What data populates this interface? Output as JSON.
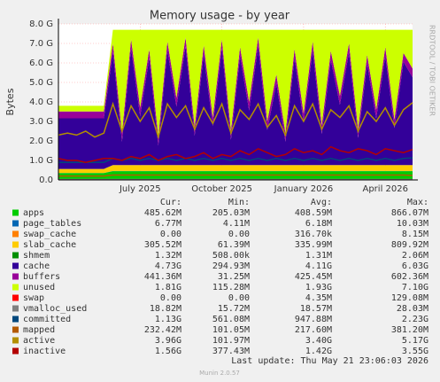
{
  "chart_data": {
    "type": "area",
    "title": "Memory usage - by year",
    "y_label": "Bytes",
    "side_text": "RRDTOOL / TOBI OETIKER",
    "footer": "Last update: Thu May 21 23:06:03 2026",
    "version": "Munin 2.0.57",
    "grid": true,
    "categories": [
      null,
      null,
      null,
      null,
      null,
      null,
      null,
      null,
      null,
      "July 2025",
      null,
      null,
      null,
      null,
      null,
      null,
      null,
      null,
      "October 2025",
      null,
      null,
      null,
      null,
      null,
      null,
      null,
      null,
      "January 2026",
      null,
      null,
      null,
      null,
      null,
      null,
      null,
      null,
      "April 2026",
      null,
      null,
      null
    ],
    "ylim": [
      0,
      8
    ],
    "yticks": [
      {
        "value": 0,
        "label": "0.0"
      },
      {
        "value": 1,
        "label": "1.0 G"
      },
      {
        "value": 2,
        "label": "2.0 G"
      },
      {
        "value": 3,
        "label": "3.0 G"
      },
      {
        "value": 4,
        "label": "4.0 G"
      },
      {
        "value": 5,
        "label": "5.0 G"
      },
      {
        "value": 6,
        "label": "6.0 G"
      },
      {
        "value": 7,
        "label": "7.0 G"
      },
      {
        "value": 8,
        "label": "8.0 G"
      }
    ],
    "stats_header": [
      "Cur:",
      "Min:",
      "Avg:",
      "Max:"
    ],
    "series": [
      {
        "name": "apps",
        "color": "#00cc00",
        "stacked": true,
        "stats": [
          "485.62M",
          "205.03M",
          "408.59M",
          "866.07M"
        ],
        "values": [
          0.35,
          0.35,
          0.35,
          0.35,
          0.35,
          0.35,
          0.45,
          0.45,
          0.45,
          0.45,
          0.45,
          0.45,
          0.45,
          0.45,
          0.45,
          0.45,
          0.45,
          0.45,
          0.45,
          0.45,
          0.45,
          0.45,
          0.45,
          0.45,
          0.45,
          0.45,
          0.45,
          0.45,
          0.45,
          0.45,
          0.45,
          0.45,
          0.45,
          0.45,
          0.45,
          0.45,
          0.45,
          0.45,
          0.45,
          0.45
        ]
      },
      {
        "name": "page_tables",
        "color": "#0066b3",
        "stacked": true,
        "stats": [
          "6.77M",
          "4.11M",
          "6.18M",
          "10.03M"
        ],
        "values": [
          0.01,
          0.01,
          0.01,
          0.01,
          0.01,
          0.01,
          0.01,
          0.01,
          0.01,
          0.01,
          0.01,
          0.01,
          0.01,
          0.01,
          0.01,
          0.01,
          0.01,
          0.01,
          0.01,
          0.01,
          0.01,
          0.01,
          0.01,
          0.01,
          0.01,
          0.01,
          0.01,
          0.01,
          0.01,
          0.01,
          0.01,
          0.01,
          0.01,
          0.01,
          0.01,
          0.01,
          0.01,
          0.01,
          0.01,
          0.01
        ]
      },
      {
        "name": "swap_cache",
        "color": "#ff8000",
        "stacked": true,
        "stats": [
          "0.00",
          "0.00",
          "316.70k",
          "8.15M"
        ],
        "values": [
          0,
          0,
          0,
          0,
          0,
          0,
          0,
          0,
          0,
          0,
          0,
          0,
          0,
          0,
          0,
          0,
          0,
          0,
          0,
          0,
          0,
          0,
          0,
          0,
          0,
          0,
          0,
          0,
          0,
          0,
          0,
          0,
          0,
          0,
          0,
          0,
          0,
          0,
          0,
          0
        ]
      },
      {
        "name": "slab_cache",
        "color": "#ffcc00",
        "stacked": true,
        "stats": [
          "305.52M",
          "61.39M",
          "335.99M",
          "809.92M"
        ],
        "values": [
          0.2,
          0.2,
          0.2,
          0.2,
          0.2,
          0.2,
          0.3,
          0.3,
          0.3,
          0.3,
          0.3,
          0.3,
          0.3,
          0.3,
          0.3,
          0.3,
          0.3,
          0.3,
          0.3,
          0.3,
          0.3,
          0.3,
          0.3,
          0.3,
          0.3,
          0.3,
          0.3,
          0.3,
          0.3,
          0.3,
          0.3,
          0.3,
          0.3,
          0.3,
          0.3,
          0.3,
          0.3,
          0.3,
          0.3,
          0.3
        ]
      },
      {
        "name": "shmem",
        "color": "#008f00",
        "stacked": true,
        "stats": [
          "1.32M",
          "508.00k",
          "1.31M",
          "2.06M"
        ],
        "values": [
          0,
          0,
          0,
          0,
          0,
          0,
          0,
          0,
          0,
          0,
          0,
          0,
          0,
          0,
          0,
          0,
          0,
          0,
          0,
          0,
          0,
          0,
          0,
          0,
          0,
          0,
          0,
          0,
          0,
          0,
          0,
          0,
          0,
          0,
          0,
          0,
          0,
          0,
          0,
          0
        ]
      },
      {
        "name": "cache",
        "color": "#330099",
        "stacked": true,
        "stats": [
          "4.73G",
          "294.93M",
          "4.11G",
          "6.03G"
        ],
        "values": [
          2.6,
          2.6,
          2.6,
          2.6,
          2.6,
          2.6,
          5.8,
          1.2,
          6.0,
          2.5,
          5.5,
          1.0,
          5.9,
          3.0,
          6.1,
          1.5,
          5.7,
          2.0,
          6.0,
          1.3,
          5.6,
          2.8,
          6.1,
          1.8,
          4.2,
          1.2,
          5.5,
          2.2,
          5.9,
          1.6,
          5.4,
          3.1,
          5.8,
          1.4,
          5.2,
          2.4,
          5.6,
          1.9,
          5.3,
          4.5
        ]
      },
      {
        "name": "buffers",
        "color": "#990099",
        "stacked": true,
        "stats": [
          "441.36M",
          "31.25M",
          "425.45M",
          "602.36M"
        ],
        "values": [
          0.35,
          0.35,
          0.35,
          0.35,
          0.35,
          0.35,
          0.45,
          0.45,
          0.45,
          0.45,
          0.45,
          0.45,
          0.45,
          0.45,
          0.45,
          0.45,
          0.45,
          0.45,
          0.45,
          0.45,
          0.45,
          0.45,
          0.45,
          0.45,
          0.45,
          0.45,
          0.45,
          0.45,
          0.45,
          0.45,
          0.45,
          0.45,
          0.45,
          0.45,
          0.45,
          0.45,
          0.45,
          0.45,
          0.45,
          0.45
        ]
      },
      {
        "name": "unused",
        "color": "#ccff00",
        "stacked": true,
        "stats": [
          "1.81G",
          "115.28M",
          "1.93G",
          "7.10G"
        ],
        "values": [
          0.29,
          0.29,
          0.29,
          0.29,
          0.29,
          0.29,
          0.69,
          5.29,
          0.49,
          3.99,
          0.99,
          5.49,
          0.59,
          3.49,
          0.39,
          4.99,
          0.79,
          4.49,
          0.49,
          5.19,
          0.89,
          3.69,
          0.39,
          4.69,
          2.29,
          5.29,
          0.99,
          4.29,
          0.59,
          4.89,
          1.09,
          3.39,
          0.69,
          5.09,
          1.29,
          4.09,
          0.89,
          4.59,
          1.19,
          1.99
        ]
      },
      {
        "name": "swap",
        "color": "#ff0000",
        "stacked": true,
        "stats": [
          "0.00",
          "0.00",
          "4.35M",
          "129.08M"
        ],
        "values": [
          0,
          0,
          0,
          0,
          0,
          0,
          0,
          0,
          0,
          0,
          0,
          0,
          0,
          0,
          0,
          0,
          0,
          0,
          0,
          0,
          0,
          0,
          0,
          0,
          0,
          0,
          0,
          0,
          0,
          0,
          0,
          0,
          0,
          0,
          0,
          0,
          0,
          0,
          0,
          0
        ]
      },
      {
        "name": "vmalloc_used",
        "color": "#808080",
        "stacked": false,
        "stats": [
          "18.82M",
          "15.72M",
          "18.57M",
          "28.03M"
        ],
        "values": [
          0.02,
          0.02,
          0.02,
          0.02,
          0.02,
          0.02,
          0.02,
          0.02,
          0.02,
          0.02,
          0.02,
          0.02,
          0.02,
          0.02,
          0.02,
          0.02,
          0.02,
          0.02,
          0.02,
          0.02,
          0.02,
          0.02,
          0.02,
          0.02,
          0.02,
          0.02,
          0.02,
          0.02,
          0.02,
          0.02,
          0.02,
          0.02,
          0.02,
          0.02,
          0.02,
          0.02,
          0.02,
          0.02,
          0.02,
          0.02
        ]
      },
      {
        "name": "committed",
        "color": "#00487d",
        "stacked": false,
        "stats": [
          "1.13G",
          "561.08M",
          "947.88M",
          "2.23G"
        ],
        "values": [
          0.9,
          0.9,
          0.9,
          0.9,
          0.9,
          0.9,
          1.1,
          1.0,
          1.1,
          1.0,
          1.1,
          1.0,
          1.1,
          1.0,
          1.1,
          1.0,
          1.1,
          1.0,
          1.1,
          1.0,
          1.1,
          1.0,
          1.1,
          1.0,
          1.1,
          1.0,
          1.1,
          1.0,
          1.1,
          1.0,
          1.1,
          1.0,
          1.1,
          1.0,
          1.1,
          1.0,
          1.1,
          1.0,
          1.1,
          1.13
        ]
      },
      {
        "name": "mapped",
        "color": "#b35a00",
        "stacked": false,
        "stats": [
          "232.42M",
          "101.05M",
          "217.60M",
          "381.20M"
        ],
        "values": [
          0.2,
          0.2,
          0.2,
          0.2,
          0.2,
          0.2,
          0.25,
          0.25,
          0.25,
          0.25,
          0.25,
          0.25,
          0.25,
          0.25,
          0.25,
          0.25,
          0.25,
          0.25,
          0.25,
          0.25,
          0.25,
          0.25,
          0.25,
          0.25,
          0.25,
          0.25,
          0.25,
          0.25,
          0.25,
          0.25,
          0.25,
          0.25,
          0.25,
          0.25,
          0.25,
          0.25,
          0.25,
          0.25,
          0.25,
          0.23
        ]
      },
      {
        "name": "active",
        "color": "#b38f00",
        "stacked": false,
        "stats": [
          "3.96G",
          "101.97M",
          "3.40G",
          "5.17G"
        ],
        "values": [
          2.3,
          2.4,
          2.3,
          2.5,
          2.2,
          2.4,
          3.9,
          2.5,
          3.8,
          3.0,
          3.7,
          2.2,
          3.9,
          3.2,
          3.8,
          2.6,
          3.7,
          2.9,
          3.9,
          2.4,
          3.6,
          3.1,
          3.9,
          2.7,
          3.3,
          2.3,
          3.8,
          3.0,
          3.9,
          2.6,
          3.6,
          3.2,
          3.8,
          2.5,
          3.5,
          3.0,
          3.7,
          2.8,
          3.6,
          3.96
        ]
      },
      {
        "name": "inactive",
        "color": "#b30000",
        "stacked": false,
        "stats": [
          "1.56G",
          "377.43M",
          "1.42G",
          "3.55G"
        ],
        "values": [
          1.1,
          1.0,
          1.0,
          0.9,
          1.0,
          1.1,
          1.1,
          1.0,
          1.2,
          1.1,
          1.3,
          1.0,
          1.2,
          1.3,
          1.1,
          1.2,
          1.4,
          1.1,
          1.3,
          1.2,
          1.5,
          1.3,
          1.6,
          1.4,
          1.2,
          1.3,
          1.6,
          1.4,
          1.5,
          1.3,
          1.7,
          1.5,
          1.4,
          1.6,
          1.5,
          1.3,
          1.6,
          1.5,
          1.4,
          1.56
        ]
      }
    ]
  }
}
